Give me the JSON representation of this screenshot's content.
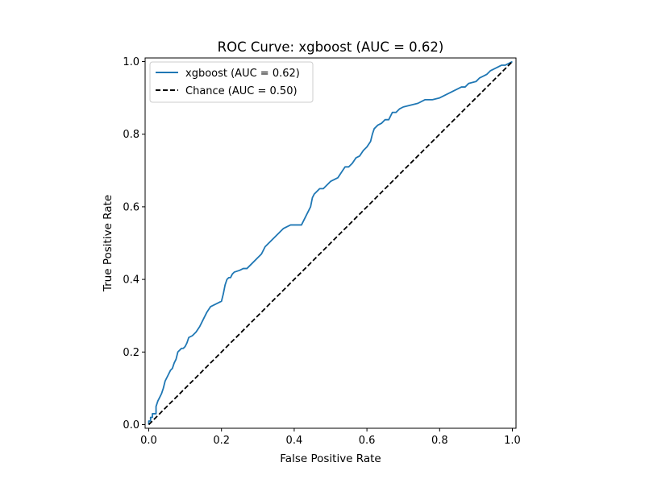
{
  "chart_data": {
    "type": "line",
    "title": "ROC Curve: xgboost (AUC = 0.62)",
    "xlabel": "False Positive Rate",
    "ylabel": "True Positive Rate",
    "xlim": [
      -0.01,
      1.01
    ],
    "ylim": [
      -0.01,
      1.01
    ],
    "xticks": [
      "0.0",
      "0.2",
      "0.4",
      "0.6",
      "0.8",
      "1.0"
    ],
    "yticks": [
      "0.0",
      "0.2",
      "0.4",
      "0.6",
      "0.8",
      "1.0"
    ],
    "grid": false,
    "legend_position": "upper-left",
    "series": [
      {
        "name": "xgboost (AUC = 0.62)",
        "color": "#1f77b4",
        "style": "solid",
        "x": [
          0.0,
          0.0,
          0.005,
          0.005,
          0.01,
          0.01,
          0.02,
          0.02,
          0.025,
          0.03,
          0.035,
          0.04,
          0.045,
          0.05,
          0.055,
          0.06,
          0.065,
          0.07,
          0.075,
          0.08,
          0.09,
          0.095,
          0.1,
          0.105,
          0.11,
          0.12,
          0.13,
          0.14,
          0.15,
          0.16,
          0.17,
          0.18,
          0.19,
          0.2,
          0.205,
          0.21,
          0.215,
          0.22,
          0.225,
          0.23,
          0.235,
          0.25,
          0.26,
          0.27,
          0.28,
          0.3,
          0.31,
          0.32,
          0.33,
          0.34,
          0.35,
          0.36,
          0.37,
          0.38,
          0.39,
          0.4,
          0.41,
          0.42,
          0.43,
          0.44,
          0.445,
          0.45,
          0.455,
          0.46,
          0.47,
          0.48,
          0.49,
          0.5,
          0.51,
          0.52,
          0.53,
          0.54,
          0.55,
          0.56,
          0.57,
          0.58,
          0.59,
          0.6,
          0.61,
          0.615,
          0.62,
          0.63,
          0.64,
          0.65,
          0.66,
          0.67,
          0.68,
          0.69,
          0.7,
          0.72,
          0.74,
          0.76,
          0.78,
          0.8,
          0.82,
          0.84,
          0.86,
          0.87,
          0.88,
          0.9,
          0.91,
          0.92,
          0.93,
          0.94,
          0.95,
          0.96,
          0.97,
          0.98,
          0.99,
          1.0
        ],
        "y": [
          0.0,
          0.01,
          0.01,
          0.02,
          0.02,
          0.03,
          0.03,
          0.05,
          0.065,
          0.075,
          0.085,
          0.1,
          0.12,
          0.13,
          0.14,
          0.15,
          0.155,
          0.17,
          0.18,
          0.2,
          0.21,
          0.21,
          0.215,
          0.225,
          0.24,
          0.245,
          0.255,
          0.27,
          0.29,
          0.31,
          0.325,
          0.33,
          0.335,
          0.34,
          0.36,
          0.385,
          0.4,
          0.405,
          0.405,
          0.415,
          0.42,
          0.425,
          0.43,
          0.43,
          0.44,
          0.46,
          0.47,
          0.49,
          0.5,
          0.51,
          0.52,
          0.53,
          0.54,
          0.545,
          0.55,
          0.55,
          0.55,
          0.55,
          0.57,
          0.59,
          0.6,
          0.625,
          0.635,
          0.64,
          0.65,
          0.65,
          0.66,
          0.67,
          0.675,
          0.68,
          0.695,
          0.71,
          0.71,
          0.72,
          0.735,
          0.74,
          0.755,
          0.765,
          0.78,
          0.8,
          0.815,
          0.825,
          0.83,
          0.84,
          0.84,
          0.86,
          0.86,
          0.87,
          0.875,
          0.88,
          0.885,
          0.895,
          0.895,
          0.9,
          0.91,
          0.92,
          0.93,
          0.93,
          0.94,
          0.945,
          0.955,
          0.96,
          0.965,
          0.975,
          0.98,
          0.985,
          0.99,
          0.99,
          0.995,
          1.0
        ]
      },
      {
        "name": "Chance (AUC = 0.50)",
        "color": "#000000",
        "style": "dashed",
        "x": [
          0.0,
          1.0
        ],
        "y": [
          0.0,
          1.0
        ]
      }
    ]
  }
}
